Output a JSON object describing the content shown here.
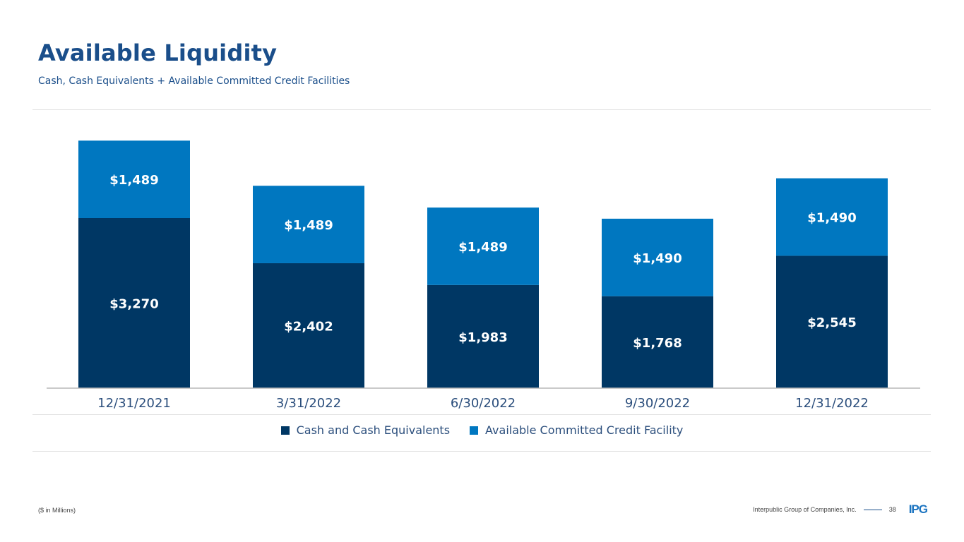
{
  "page": {
    "title": "Available Liquidity",
    "subtitle": "Cash, Cash Equivalents + Available Committed Credit Facilities",
    "footnote": "($ in Millions)",
    "company": "Interpublic Group of Companies, Inc.",
    "page_number": "38",
    "logo_text": "IPG"
  },
  "colors": {
    "cash": "#003764",
    "credit": "#0077c0",
    "title": "#1a4e8a",
    "axis_text": "#2b4e7c"
  },
  "chart_data": {
    "type": "bar",
    "stacked": true,
    "title": "Available Liquidity",
    "xlabel": "",
    "ylabel": "",
    "ylim": [
      0,
      5200
    ],
    "grid": false,
    "legend_position": "bottom-center",
    "categories": [
      "12/31/2021",
      "3/31/2022",
      "6/30/2022",
      "9/30/2022",
      "12/31/2022"
    ],
    "series": [
      {
        "name": "Cash and Cash Equivalents",
        "values": [
          3270,
          2402,
          1983,
          1768,
          2545
        ],
        "labels": [
          "$3,270",
          "$2,402",
          "$1,983",
          "$1,768",
          "$2,545"
        ]
      },
      {
        "name": "Available Committed Credit Facility",
        "values": [
          1489,
          1489,
          1489,
          1490,
          1490
        ],
        "labels": [
          "$1,489",
          "$1,489",
          "$1,489",
          "$1,490",
          "$1,490"
        ]
      }
    ]
  }
}
